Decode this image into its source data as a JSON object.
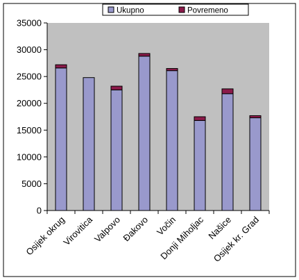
{
  "chart_data": {
    "type": "bar",
    "stacked": true,
    "categories": [
      "Osijek okrug",
      "Virovitica",
      "Valpovo",
      "Đakovo",
      "Vočin",
      "Donji Miholjac",
      "Našice",
      "Osijek kr. Grad"
    ],
    "series": [
      {
        "name": "Ukupno",
        "color": "#9999cc",
        "values": [
          26600,
          24800,
          22500,
          28800,
          26100,
          16800,
          21800,
          17300
        ]
      },
      {
        "name": "Povremeno",
        "color": "#8b1a4a",
        "values": [
          600,
          0,
          700,
          500,
          400,
          700,
          900,
          400
        ]
      }
    ],
    "ylim": [
      0,
      35000
    ],
    "yticks": [
      0,
      5000,
      10000,
      15000,
      20000,
      25000,
      30000,
      35000
    ],
    "title": "",
    "xlabel": "",
    "ylabel": "",
    "grid": false,
    "legend_position": "top",
    "plot_background": "#c0c0c0"
  }
}
